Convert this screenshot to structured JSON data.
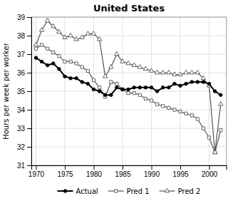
{
  "chart_data": {
    "type": "line",
    "title": "United States",
    "y_label": "Hours per week per worker",
    "x": [
      1970,
      1971,
      1972,
      1973,
      1974,
      1975,
      1976,
      1977,
      1978,
      1979,
      1980,
      1981,
      1982,
      1983,
      1984,
      1985,
      1986,
      1987,
      1988,
      1989,
      1990,
      1991,
      1992,
      1993,
      1994,
      1995,
      1996,
      1997,
      1998,
      1999,
      2000,
      2001,
      2002
    ],
    "series": [
      {
        "name": "Actual",
        "color": "#000000",
        "marker": "circle",
        "values": [
          36.8,
          36.6,
          36.4,
          36.5,
          36.2,
          35.8,
          35.7,
          35.7,
          35.5,
          35.4,
          35.1,
          35.0,
          34.8,
          34.8,
          35.2,
          35.1,
          35.1,
          35.2,
          35.2,
          35.2,
          35.2,
          35.0,
          35.2,
          35.2,
          35.4,
          35.3,
          35.4,
          35.5,
          35.5,
          35.5,
          35.4,
          35.0,
          34.8
        ]
      },
      {
        "name": "Pred 1",
        "color": "#555555",
        "marker": "square-open",
        "values": [
          37.3,
          37.5,
          37.3,
          37.1,
          36.9,
          36.6,
          36.6,
          36.5,
          36.3,
          36.1,
          35.6,
          35.2,
          34.7,
          35.5,
          35.4,
          35.1,
          34.9,
          34.9,
          34.8,
          34.6,
          34.5,
          34.3,
          34.2,
          34.1,
          34.0,
          33.9,
          33.8,
          33.7,
          33.5,
          33.0,
          32.5,
          31.7,
          32.9
        ]
      },
      {
        "name": "Pred 2",
        "color": "#555555",
        "marker": "triangle-open",
        "values": [
          37.5,
          38.3,
          38.8,
          38.5,
          38.2,
          37.9,
          38.0,
          37.8,
          37.9,
          38.1,
          38.1,
          37.8,
          35.8,
          36.3,
          37.0,
          36.6,
          36.5,
          36.4,
          36.3,
          36.2,
          36.1,
          36.0,
          36.0,
          36.0,
          35.9,
          35.9,
          36.0,
          36.0,
          36.0,
          35.7,
          35.3,
          31.7,
          34.3
        ]
      }
    ],
    "xlim": [
      1969.2,
      2003.0
    ],
    "xticks": [
      1970,
      1975,
      1980,
      1985,
      1990,
      1995,
      2000
    ],
    "ylim": [
      31,
      39
    ],
    "yticks": [
      31,
      32,
      33,
      34,
      35,
      36,
      37,
      38,
      39
    ],
    "grid": true,
    "legend": "bottom"
  }
}
